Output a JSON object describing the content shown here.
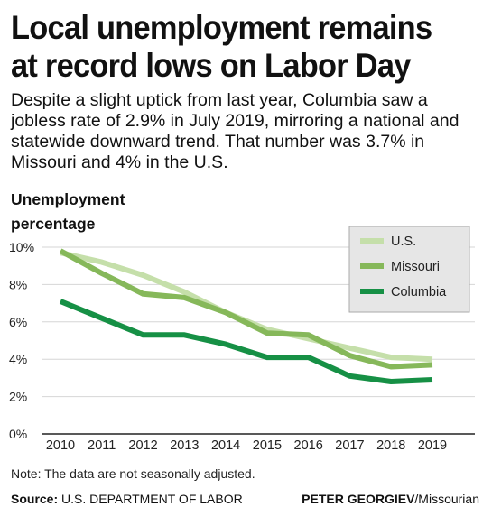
{
  "title_line1": "Local unemployment remains",
  "title_line2": "at record lows on Labor Day",
  "subtitle": "Despite a slight uptick from last year, Columbia saw a jobless rate of 2.9% in July 2019, mirroring a national and statewide downward trend. That number was 3.7% in Missouri and 4% in the U.S.",
  "ylabel_line1": "Unemployment",
  "ylabel_line2": "percentage",
  "note": "Note: The data are not seasonally adjusted.",
  "source_label": "Source:",
  "source_text": "U.S. DEPARTMENT OF LABOR",
  "credit_name": "PETER GEORGIEV",
  "credit_outlet": "/Missourian",
  "colors": {
    "us": "#c5dfaa",
    "missouri": "#86b85a",
    "columbia": "#169045",
    "legend_bg": "#e6e6e6",
    "grid": "#d6d6d6"
  },
  "chart_data": {
    "type": "line",
    "x": [
      "2010",
      "2011",
      "2012",
      "2013",
      "2014",
      "2015",
      "2016",
      "2017",
      "2018",
      "2019"
    ],
    "ytick_labels": [
      "0%",
      "2%",
      "4%",
      "6%",
      "8%",
      "10%"
    ],
    "ytick_values": [
      0,
      2,
      4,
      6,
      8,
      10
    ],
    "ylim": [
      0,
      10
    ],
    "grid": true,
    "legend_position": "top-right",
    "series": [
      {
        "name": "U.S.",
        "color_key": "us",
        "values": [
          9.7,
          9.2,
          8.5,
          7.6,
          6.5,
          5.6,
          5.1,
          4.6,
          4.1,
          4.0
        ]
      },
      {
        "name": "Missouri",
        "color_key": "missouri",
        "values": [
          9.8,
          8.6,
          7.5,
          7.3,
          6.5,
          5.4,
          5.3,
          4.2,
          3.6,
          3.7
        ]
      },
      {
        "name": "Columbia",
        "color_key": "columbia",
        "values": [
          7.1,
          6.2,
          5.3,
          5.3,
          4.8,
          4.1,
          4.1,
          3.1,
          2.8,
          2.9
        ]
      }
    ]
  }
}
